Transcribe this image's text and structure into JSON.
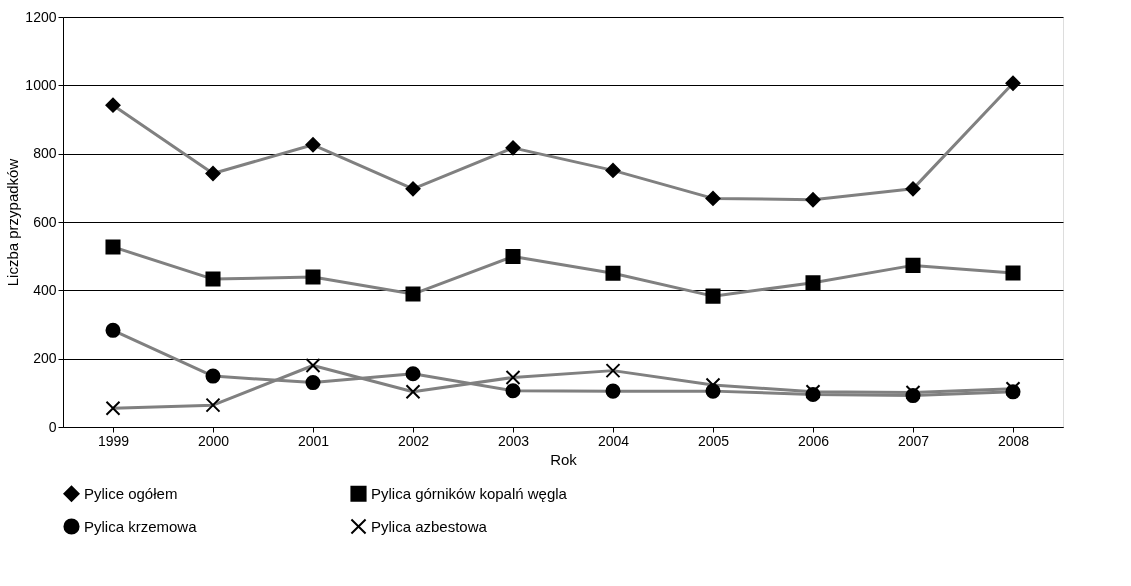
{
  "chart_data": {
    "type": "line",
    "xlabel": "Rok",
    "ylabel": "Liczba przypadków",
    "categories": [
      "1999",
      "2000",
      "2001",
      "2002",
      "2003",
      "2004",
      "2005",
      "2006",
      "2007",
      "2008"
    ],
    "series": [
      {
        "name": "Pylice ogółem",
        "color": "#808080",
        "marker": "diamond",
        "values": [
          942,
          742,
          826,
          697,
          817,
          751,
          669,
          665,
          697,
          1006
        ]
      },
      {
        "name": "Pylica górników kopalń węgla",
        "color": "#808080",
        "marker": "square",
        "values": [
          527,
          433,
          439,
          389,
          499,
          450,
          383,
          422,
          473,
          451
        ]
      },
      {
        "name": "Pylica krzemowa",
        "color": "#808080",
        "marker": "circle",
        "values": [
          283,
          149,
          130,
          156,
          106,
          105,
          105,
          95,
          92,
          103
        ]
      },
      {
        "name": "Pylica azbestowa",
        "color": "#808080",
        "marker": "cross",
        "values": [
          55,
          64,
          180,
          103,
          145,
          165,
          123,
          103,
          101,
          112
        ]
      }
    ],
    "ylim": [
      0,
      1200
    ],
    "yticks": [
      0,
      200,
      400,
      600,
      800,
      1000,
      1200
    ],
    "grid": "y",
    "legend": "bottom"
  }
}
